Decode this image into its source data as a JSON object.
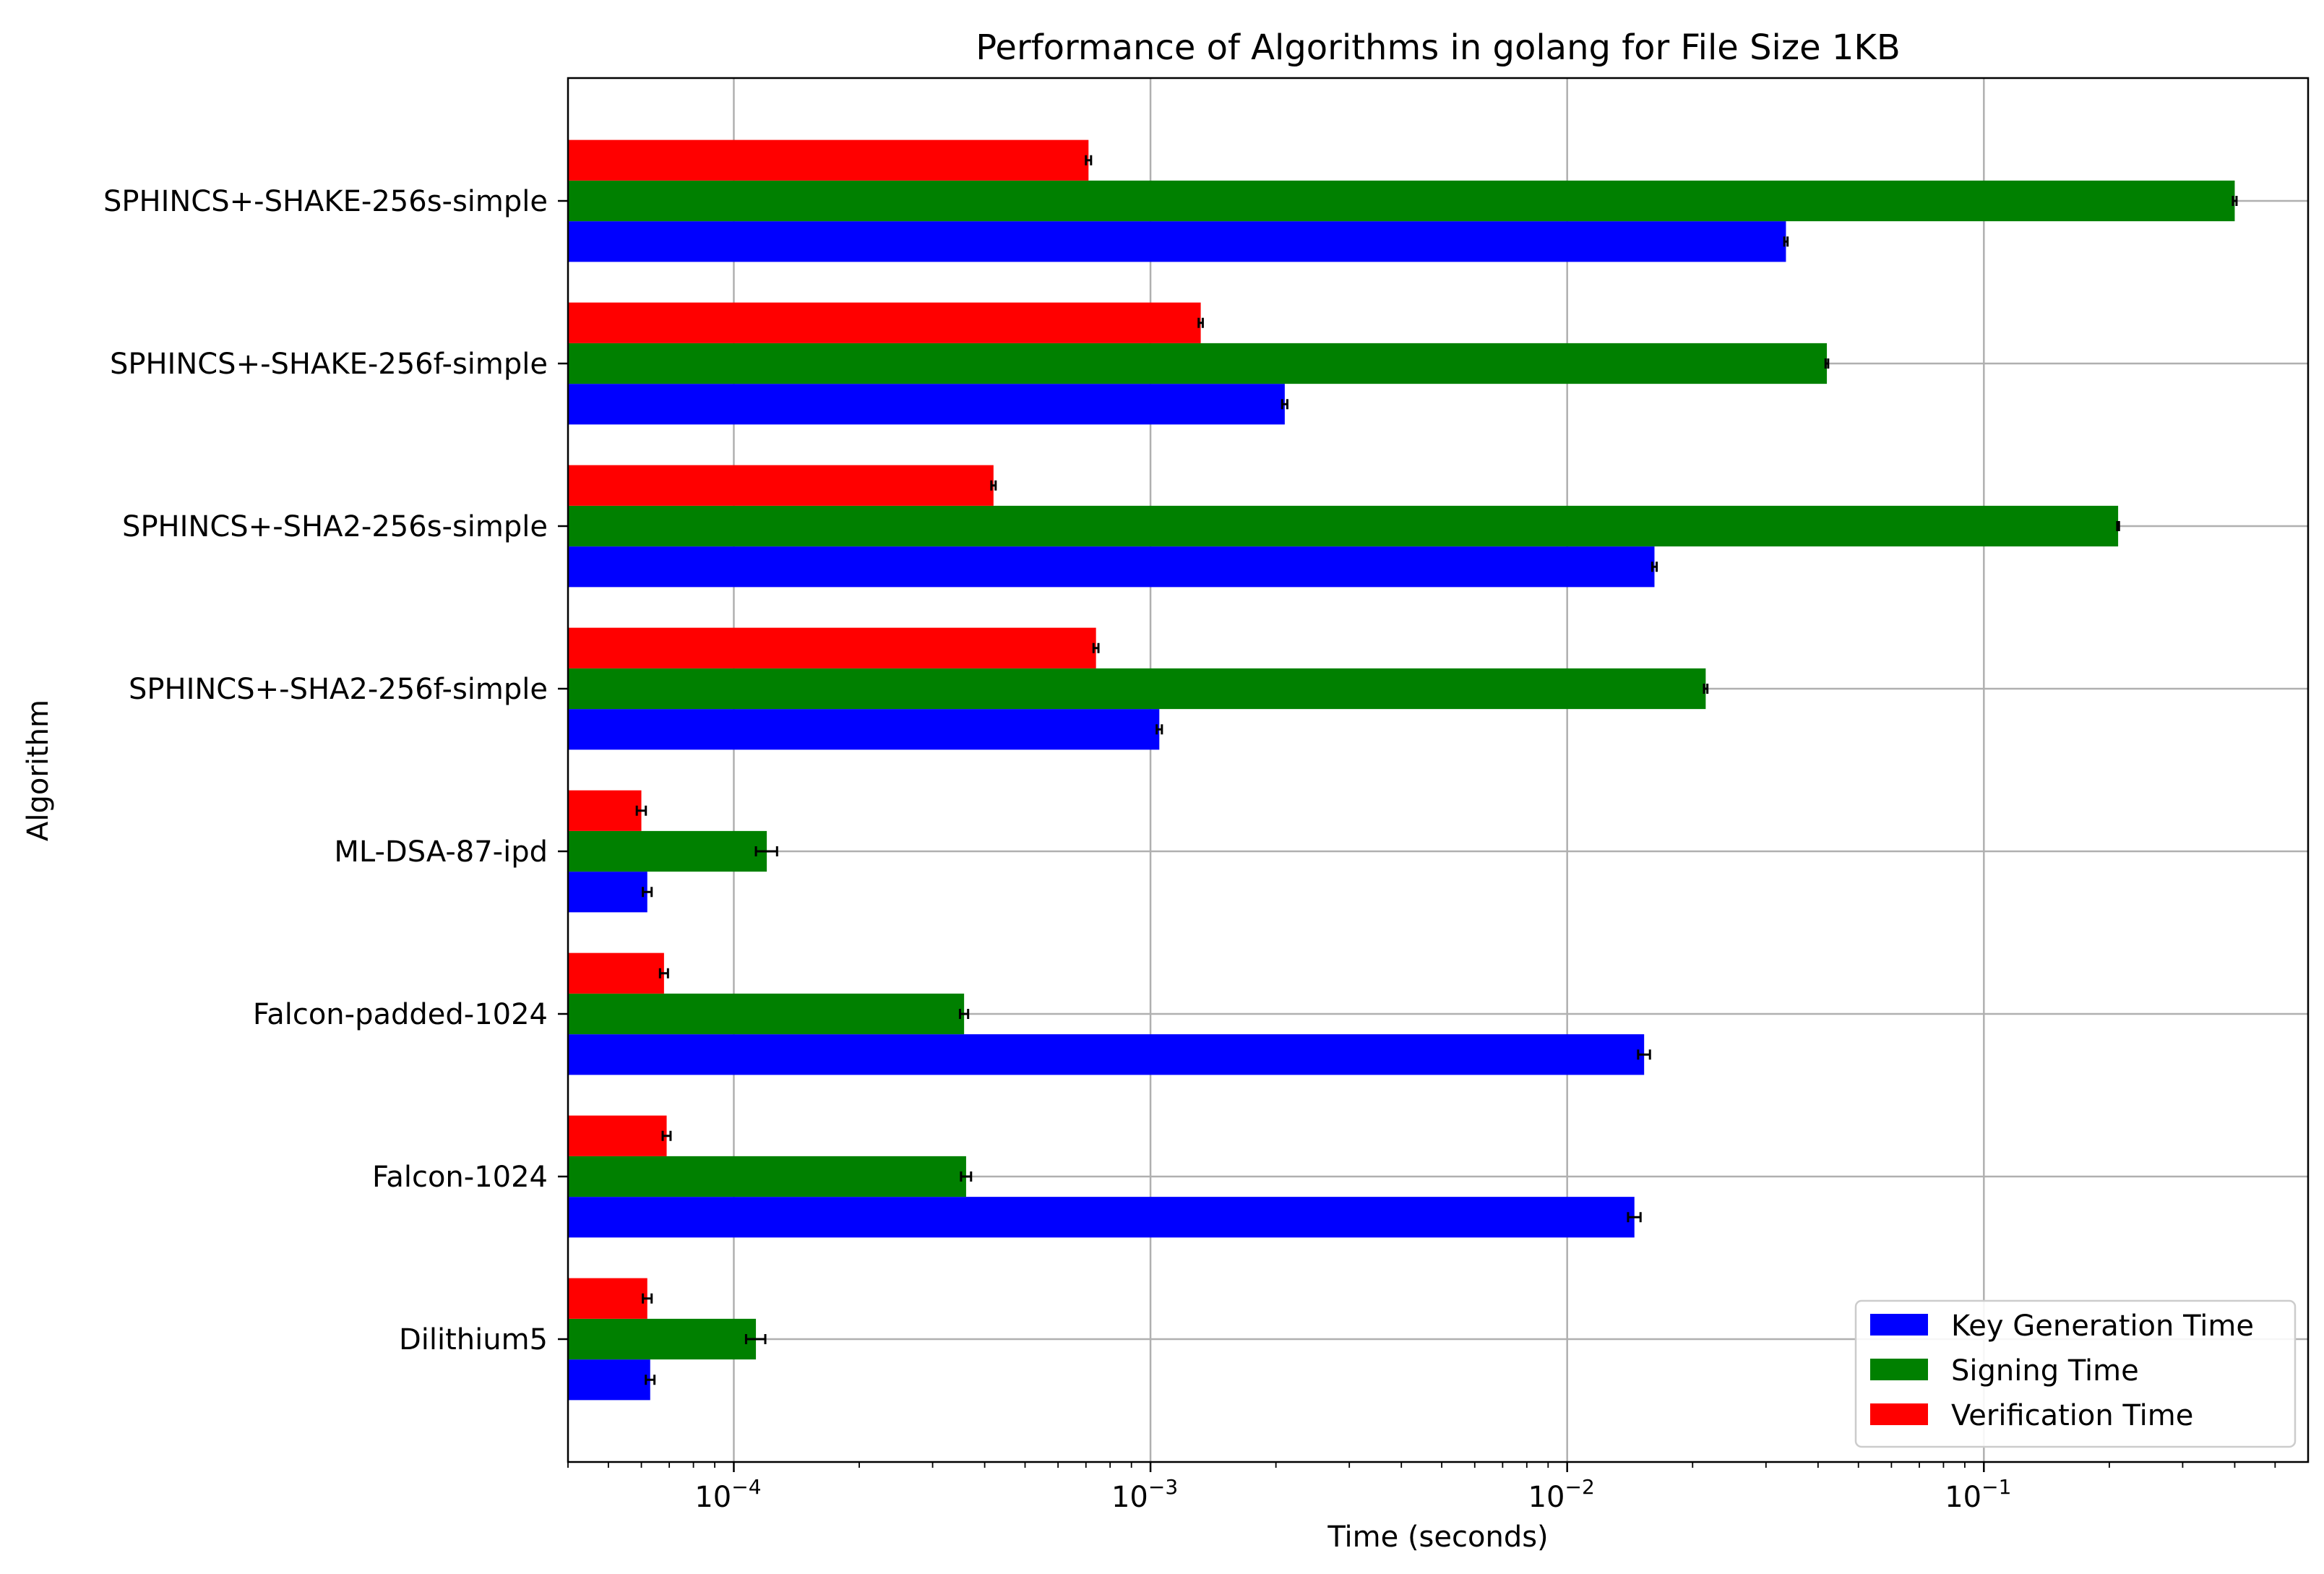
{
  "chart_data": {
    "type": "bar",
    "orientation": "horizontal",
    "title": "Performance of Algorithms in golang for File Size 1KB",
    "xlabel": "Time (seconds)",
    "ylabel": "Algorithm",
    "xscale": "log",
    "xlim": [
      4e-05,
      0.6
    ],
    "grid": true,
    "legend_position": "lower-right",
    "categories": [
      "Dilithium5",
      "Falcon-1024",
      "Falcon-padded-1024",
      "ML-DSA-87-ipd",
      "SPHINCS+-SHA2-256f-simple",
      "SPHINCS+-SHA2-256s-simple",
      "SPHINCS+-SHAKE-256f-simple",
      "SPHINCS+-SHAKE-256s-simple"
    ],
    "series": [
      {
        "name": "Key Generation Time",
        "color": "#0000ff",
        "values": [
          6.3e-05,
          0.0145,
          0.0153,
          6.2e-05,
          0.00105,
          0.0162,
          0.0021,
          0.0335
        ],
        "errors": [
          1.5e-06,
          0.0005,
          0.0005,
          1.5e-06,
          1.5e-05,
          0.0002,
          3e-05,
          0.0003
        ]
      },
      {
        "name": "Signing Time",
        "color": "#008000",
        "values": [
          0.000113,
          0.000361,
          0.000357,
          0.00012,
          0.0215,
          0.21,
          0.042,
          0.4
        ],
        "errors": [
          6e-06,
          1e-05,
          8e-06,
          7e-06,
          0.0002,
          0.001,
          0.0003,
          0.004
        ]
      },
      {
        "name": "Verification Time",
        "color": "#ff0000",
        "values": [
          6.2e-05,
          6.9e-05,
          6.8e-05,
          6e-05,
          0.00074,
          0.00042,
          0.00132,
          0.00071
        ],
        "errors": [
          1.5e-06,
          1.5e-06,
          1.5e-06,
          1.5e-06,
          1e-05,
          5e-06,
          1.5e-05,
          1e-05
        ]
      }
    ],
    "xticks": [
      {
        "value": 0.0001,
        "base": "10",
        "exp": "−4"
      },
      {
        "value": 0.001,
        "base": "10",
        "exp": "−3"
      },
      {
        "value": 0.01,
        "base": "10",
        "exp": "−2"
      },
      {
        "value": 0.1,
        "base": "10",
        "exp": "−1"
      }
    ]
  }
}
